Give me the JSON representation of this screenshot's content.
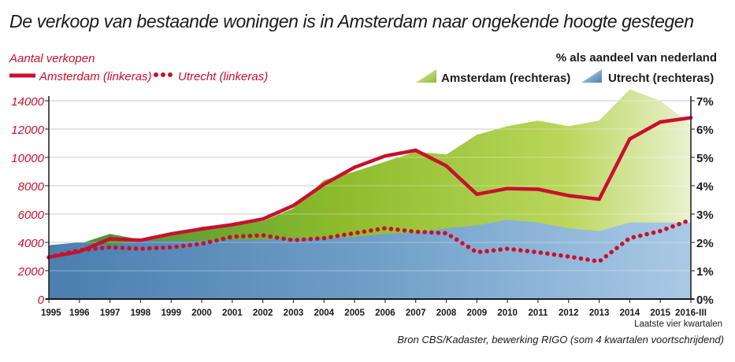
{
  "chart_data": {
    "type": "area",
    "title": "De verkoop van bestaande woningen is in Amsterdam naar ongekende hoogte gestegen",
    "left_axis_label": "Aantal verkopen",
    "right_axis_label": "% als aandeel van nederland",
    "x": [
      "1995",
      "1996",
      "1997",
      "1998",
      "1999",
      "2000",
      "2001",
      "2002",
      "2003",
      "2004",
      "2005",
      "2006",
      "2007",
      "2008",
      "2009",
      "2010",
      "2011",
      "2012",
      "2013",
      "2014",
      "2015",
      "2016-III"
    ],
    "x_note": "Laatste vier kwartalen",
    "left_ylim": [
      0,
      14000
    ],
    "left_ticks": [
      "0",
      "2000",
      "4000",
      "6000",
      "8000",
      "10000",
      "12000",
      "14000"
    ],
    "right_ylim": [
      0,
      7
    ],
    "right_ticks": [
      "0%",
      "1%",
      "2%",
      "3%",
      "4%",
      "5%",
      "6%",
      "7%"
    ],
    "grid": true,
    "series": [
      {
        "name": "Amsterdam (linkeras)",
        "axis": "left",
        "style": "line",
        "color": "#c8102e",
        "values": [
          2950,
          3350,
          4250,
          4150,
          4600,
          4950,
          5250,
          5650,
          6600,
          8100,
          9300,
          10100,
          10500,
          9400,
          7400,
          7800,
          7750,
          7300,
          7050,
          11300,
          12500,
          12800
        ]
      },
      {
        "name": "Utrecht (linkeras)",
        "axis": "left",
        "style": "dotted",
        "color": "#c8102e",
        "values": [
          2950,
          3450,
          3650,
          3550,
          3650,
          3900,
          4400,
          4500,
          4150,
          4300,
          4650,
          5000,
          4750,
          4650,
          3300,
          3550,
          3300,
          3000,
          2650,
          4300,
          4800,
          5600
        ]
      },
      {
        "name": "Amsterdam (rechteras)",
        "axis": "right",
        "style": "area",
        "color": "#a6c93c",
        "values": [
          1.9,
          1.95,
          2.3,
          2.1,
          2.25,
          2.55,
          2.65,
          2.75,
          3.2,
          4.2,
          4.5,
          4.85,
          5.2,
          5.1,
          5.8,
          6.1,
          6.3,
          6.1,
          6.3,
          7.4,
          7.0,
          6.15
        ]
      },
      {
        "name": "Utrecht (rechteras)",
        "axis": "right",
        "style": "area",
        "color": "#6f9ec8",
        "values": [
          1.9,
          2.0,
          1.9,
          2.05,
          2.05,
          2.05,
          2.1,
          2.1,
          2.15,
          2.15,
          2.2,
          2.3,
          2.35,
          2.5,
          2.6,
          2.8,
          2.7,
          2.5,
          2.4,
          2.7,
          2.7,
          2.7
        ]
      }
    ]
  },
  "source": "Bron CBS/Kadaster, bewerking RIGO (som 4 kwartalen voortschrijdend)",
  "colors": {
    "red": "#c8102e",
    "green": "#a6c93c",
    "blue": "#6f9ec8",
    "grid": "#b0b0b0",
    "axis": "#1a1a1a"
  }
}
